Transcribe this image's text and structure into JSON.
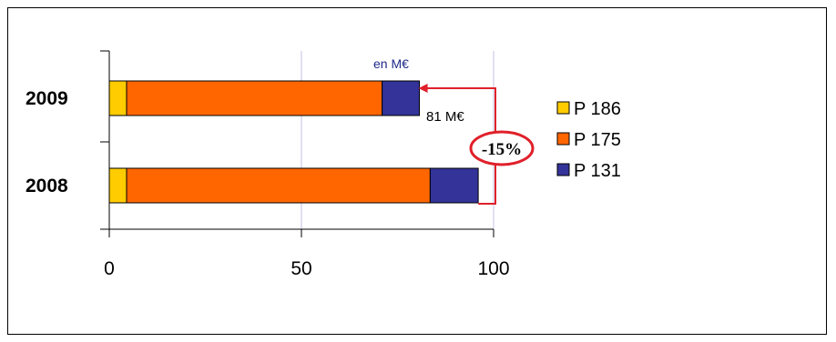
{
  "colors": {
    "P 186": "#ffcc00",
    "P 175": "#ff6600",
    "P 131": "#333399",
    "grid": "#c0c0e0",
    "annotation": "#e0202a",
    "unit": "#1f2a8a"
  },
  "chart_data": {
    "type": "bar",
    "orientation": "horizontal",
    "stacked": true,
    "categories": [
      "2009",
      "2008"
    ],
    "series": [
      {
        "name": "P 186",
        "values": [
          4.5,
          4.5
        ]
      },
      {
        "name": "P 175",
        "values": [
          66.5,
          79.0
        ]
      },
      {
        "name": "P 131",
        "values": [
          9.7,
          12.5
        ]
      }
    ],
    "xlim": [
      0,
      100
    ],
    "xticks": [
      "0",
      "50",
      "100"
    ],
    "grid": true,
    "legend_position": "right",
    "unit_label": "en M€",
    "annotations": {
      "total_2009": "81 M€",
      "change": "-15%"
    }
  }
}
